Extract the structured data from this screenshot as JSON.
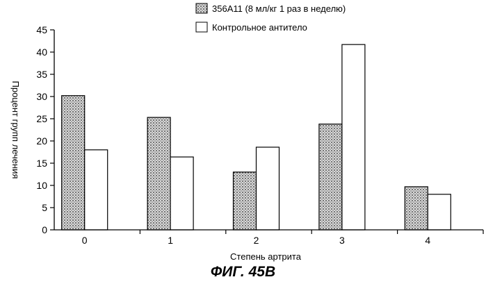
{
  "chart_data": {
    "type": "bar",
    "categories": [
      "0",
      "1",
      "2",
      "3",
      "4"
    ],
    "series": [
      {
        "name": "356A11 (8 мл/кг 1 раз в неделю)",
        "values": [
          30.2,
          25.3,
          13.0,
          23.8,
          9.7
        ],
        "pattern": "stippled"
      },
      {
        "name": "Контрольное антитело",
        "values": [
          18.0,
          16.4,
          18.6,
          41.7,
          8.0
        ],
        "pattern": "hollow"
      }
    ],
    "xlabel": "Степень артрита",
    "ylabel": "Процент групп лечения",
    "ylim": [
      0,
      45
    ],
    "yticks": [
      0,
      5,
      10,
      15,
      20,
      25,
      30,
      35,
      40,
      45
    ],
    "grid": false,
    "legend_position": "top-right"
  },
  "caption": "ФИГ. 45B"
}
